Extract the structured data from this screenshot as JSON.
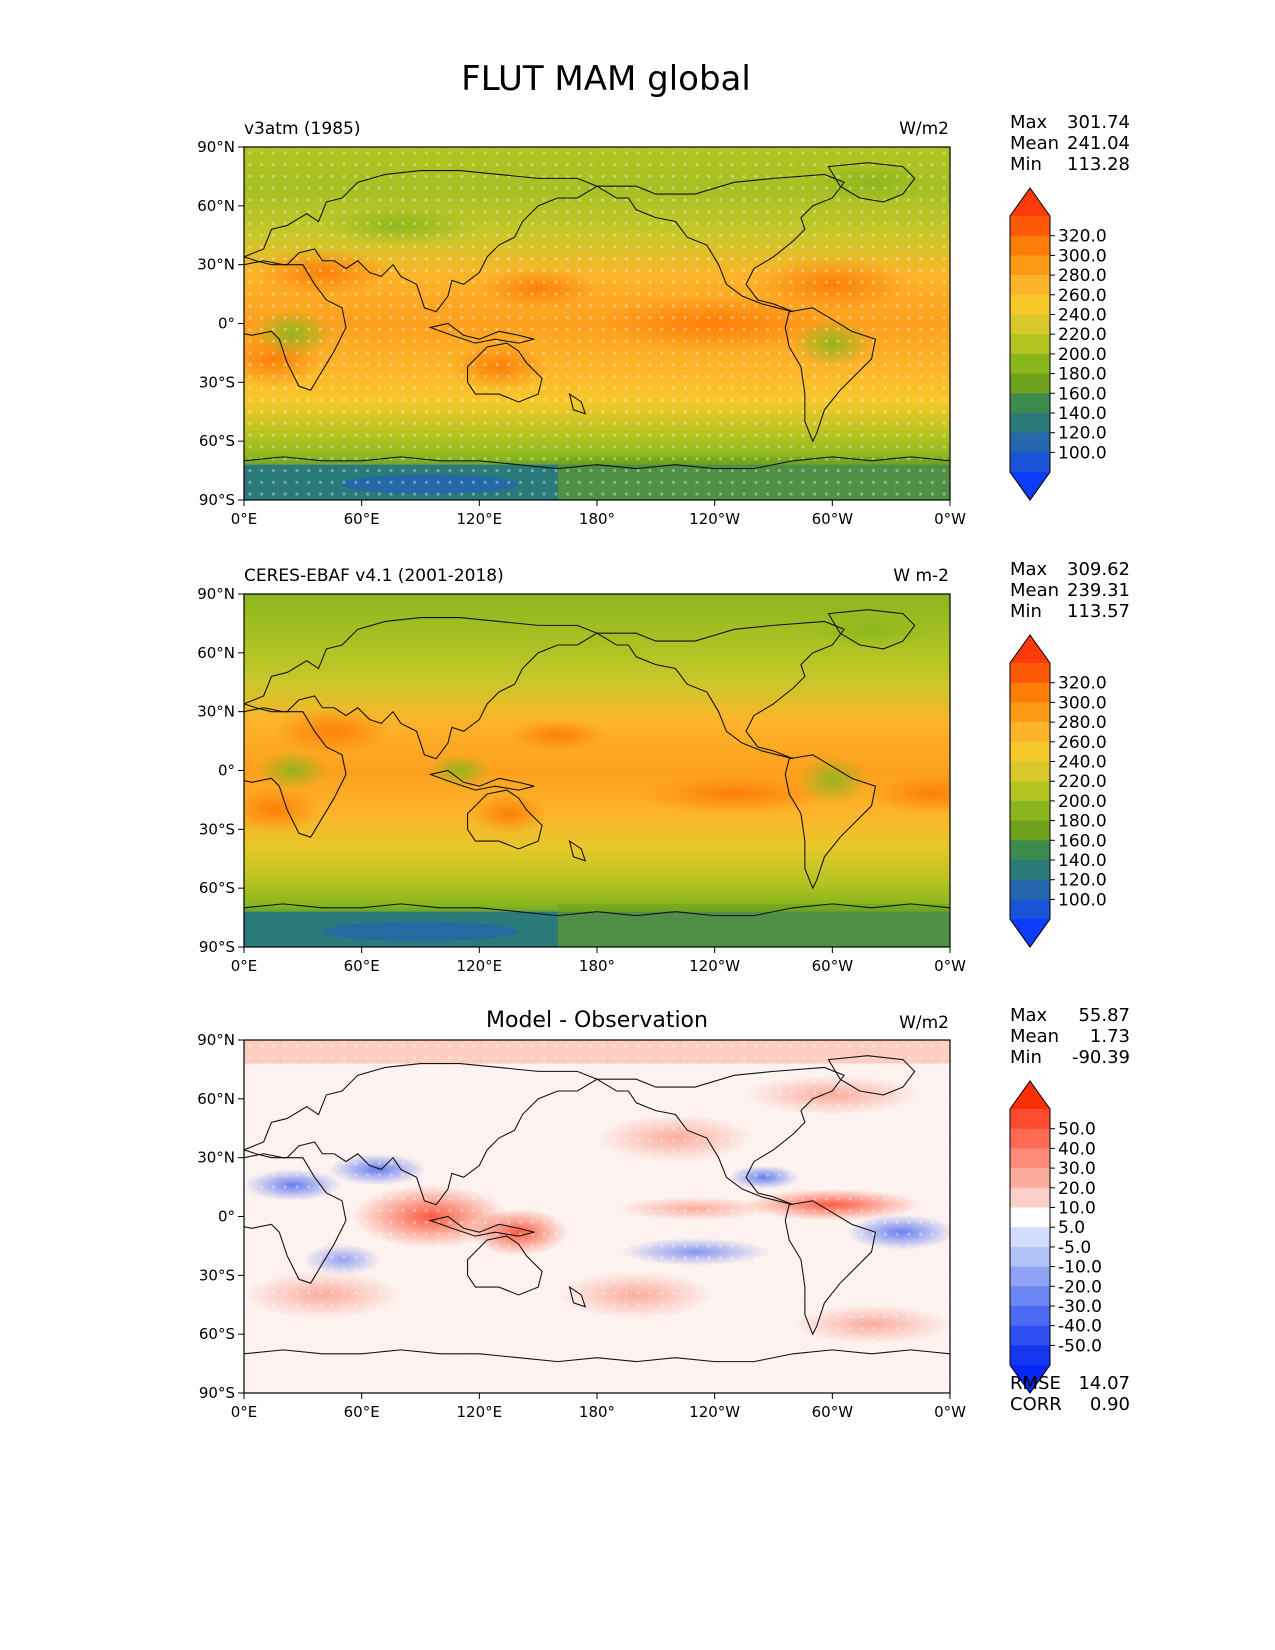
{
  "title": "FLUT MAM global",
  "axes": {
    "lat_ticks": [
      "90°N",
      "60°N",
      "30°N",
      "0°",
      "30°S",
      "60°S",
      "90°S"
    ],
    "lon_ticks": [
      "0°E",
      "60°E",
      "120°E",
      "180°",
      "120°W",
      "60°W",
      "0°W"
    ]
  },
  "panels": [
    {
      "id": "model",
      "left_title": "v3atm (1985)",
      "center_title": "",
      "units": "W/m2",
      "stats": {
        "max": "301.74",
        "mean": "241.04",
        "min": "113.28"
      },
      "colorbar": {
        "labels": [
          "320.0",
          "300.0",
          "280.0",
          "260.0",
          "240.0",
          "220.0",
          "200.0",
          "180.0",
          "160.0",
          "140.0",
          "120.0",
          "100.0"
        ],
        "colors": [
          "#fe3a0a",
          "#fd5a08",
          "#fd7d08",
          "#fd9b16",
          "#fdb42a",
          "#f7c82a",
          "#d8c82a",
          "#b3c421",
          "#8ab61d",
          "#6fa21c",
          "#3c8a4e",
          "#2a7a7a",
          "#2566ad",
          "#1a52d8",
          "#0b3cfc"
        ]
      }
    },
    {
      "id": "obs",
      "left_title": "CERES-EBAF v4.1 (2001-2018)",
      "center_title": "",
      "units": "W m-2",
      "stats": {
        "max": "309.62",
        "mean": "239.31",
        "min": "113.57"
      },
      "colorbar": {
        "labels": [
          "320.0",
          "300.0",
          "280.0",
          "260.0",
          "240.0",
          "220.0",
          "200.0",
          "180.0",
          "160.0",
          "140.0",
          "120.0",
          "100.0"
        ],
        "colors": [
          "#fe3a0a",
          "#fd5a08",
          "#fd7d08",
          "#fd9b16",
          "#fdb42a",
          "#f7c82a",
          "#d8c82a",
          "#b3c421",
          "#8ab61d",
          "#6fa21c",
          "#3c8a4e",
          "#2a7a7a",
          "#2566ad",
          "#1a52d8",
          "#0b3cfc"
        ]
      }
    },
    {
      "id": "diff",
      "left_title": "",
      "center_title": "Model - Observation",
      "units": "W/m2",
      "stats": {
        "max": "55.87",
        "mean": "1.73",
        "min": "-90.39"
      },
      "colorbar": {
        "labels": [
          "50.0",
          "40.0",
          "30.0",
          "20.0",
          "10.0",
          "5.0",
          "-5.0",
          "-10.0",
          "-20.0",
          "-30.0",
          "-40.0",
          "-50.0"
        ],
        "colors": [
          "#fc2e05",
          "#fd4b2f",
          "#fc6a52",
          "#fb8b77",
          "#fbab9c",
          "#fcd0c6",
          "#ffffff",
          "#d4dcfc",
          "#b3c1f9",
          "#8ea3f6",
          "#6c86f4",
          "#4c6af2",
          "#2e50f0",
          "#1436ee",
          "#0526f5"
        ]
      },
      "rmse": "14.07",
      "corr": "0.90"
    }
  ]
}
